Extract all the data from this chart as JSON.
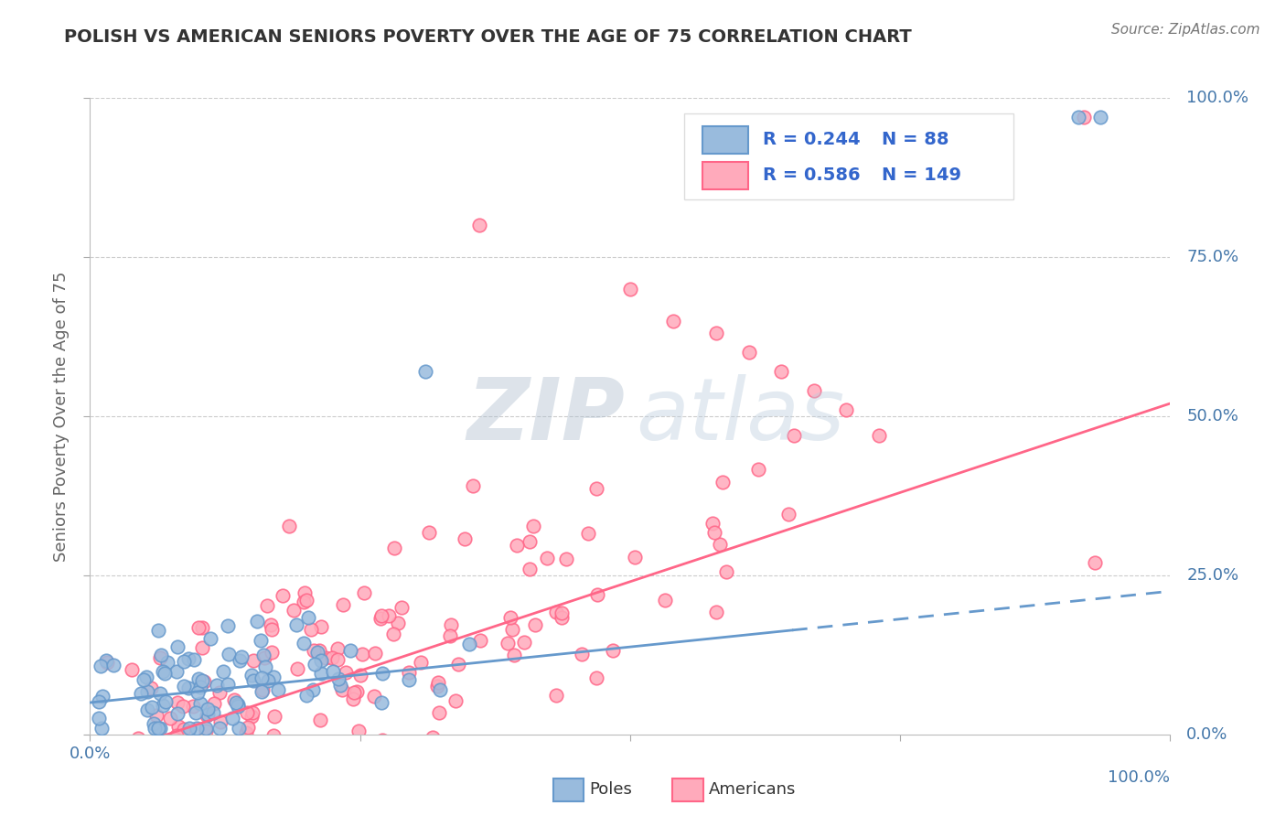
{
  "title": "POLISH VS AMERICAN SENIORS POVERTY OVER THE AGE OF 75 CORRELATION CHART",
  "source": "Source: ZipAtlas.com",
  "ylabel": "Seniors Poverty Over the Age of 75",
  "xlim": [
    0,
    1
  ],
  "ylim": [
    0,
    1
  ],
  "right_yticklabels": [
    "0.0%",
    "25.0%",
    "50.0%",
    "75.0%",
    "100.0%"
  ],
  "poles_color": "#6699CC",
  "poles_color_fill": "#99BBDD",
  "americans_color": "#FF6688",
  "americans_color_fill": "#FFAABB",
  "legend_R_poles": "0.244",
  "legend_N_poles": "88",
  "legend_R_americans": "0.586",
  "legend_N_americans": "149",
  "grid_color": "#CCCCCC",
  "title_color": "#333333",
  "axis_label_color": "#666666",
  "tick_label_color": "#4477AA",
  "background_color": "#FFFFFF",
  "watermark_color_zip": "#AABBCC",
  "watermark_color_atlas": "#BBCCDD",
  "legend_text_color": "#3366CC"
}
